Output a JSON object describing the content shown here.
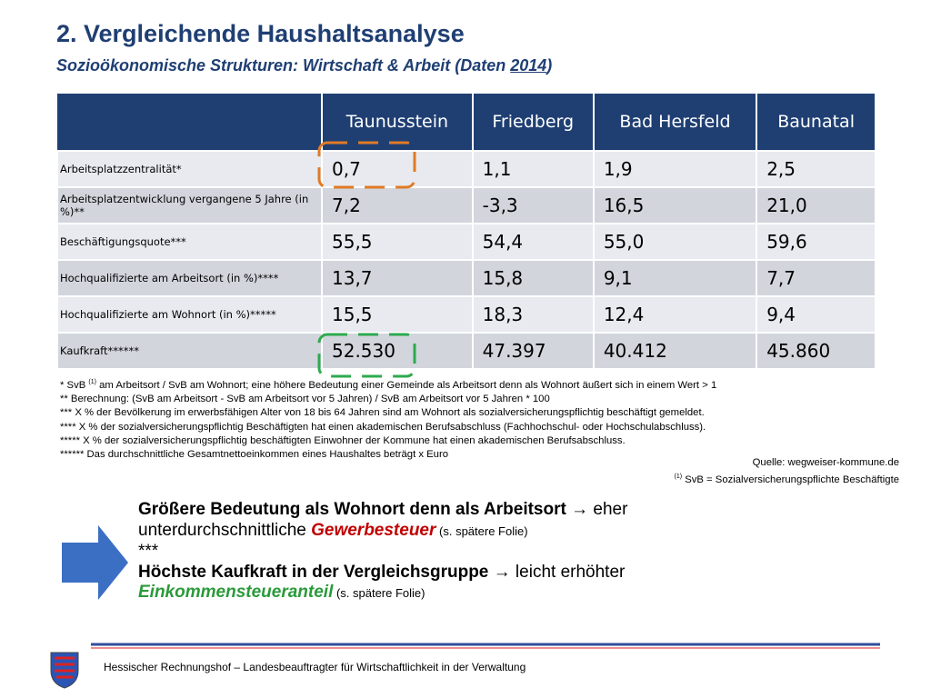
{
  "header": {
    "title": "2. Vergleichende Haushaltsanalyse",
    "subtitle": {
      "prefix": "Sozioökonomische Strukturen: Wirtschaft & Arbeit (Daten ",
      "year": "2014",
      "suffix": ")"
    }
  },
  "table": {
    "columns": [
      "Taunusstein",
      "Friedberg",
      "Bad Hersfeld",
      "Baunatal"
    ],
    "rows": [
      [
        "Arbeitsplatzzentralität*",
        "0,7",
        "1,1",
        "1,9",
        "2,5"
      ],
      [
        "Arbeitsplatzentwicklung vergangene 5 Jahre (in %)**",
        "7,2",
        "-3,3",
        "16,5",
        "21,0"
      ],
      [
        "Beschäftigungsquote***",
        "55,5",
        "54,4",
        "55,0",
        "59,6"
      ],
      [
        "Hochqualifizierte am Arbeitsort (in %)****",
        "13,7",
        "15,8",
        "9,1",
        "7,7"
      ],
      [
        "Hochqualifizierte am Wohnort (in %)*****",
        "15,5",
        "18,3",
        "12,4",
        "9,4"
      ],
      [
        "Kaufkraft******",
        "52.530",
        "47.397",
        "40.412",
        "45.860"
      ]
    ]
  },
  "footnotes": {
    "first": {
      "prefix": "* SvB ",
      "sup": "(1)",
      "text": " am Arbeitsort / SvB am Wohnort; eine höhere Bedeutung einer Gemeinde als Arbeitsort denn als Wohnort äußert sich in einem Wert > 1"
    },
    "lines": [
      "** Berechnung: (SvB am Arbeitsort - SvB am Arbeitsort vor 5 Jahren) / SvB am Arbeitsort vor 5 Jahren * 100",
      "*** X % der Bevölkerung im erwerbsfähigen Alter von 18 bis 64 Jahren sind am Wohnort als sozialversicherungspflichtig beschäftigt gemeldet.",
      "**** X % der sozialversicherungspflichtig Beschäftigten hat einen akademischen Berufsabschluss (Fachhochschul- oder Hochschulabschluss).",
      "***** X % der sozialversicherungspflichtig beschäftigten Einwohner der Kommune hat einen akademischen Berufsabschluss.",
      "****** Das durchschnittliche Gesamtnettoeinkommen eines Haushaltes beträgt x Euro"
    ]
  },
  "source": {
    "line": "Quelle: wegweiser-kommune.de",
    "sup": "(1)",
    "definition": " SvB = Sozialversicherungspflichte Beschäftigte"
  },
  "conclusion": {
    "first": {
      "bold": "Größere Bedeutung als Wohnort denn als Arbeitsort",
      "text": " → eher unterdurchschnittliche ",
      "highlight": "Gewerbesteuer",
      "note": " (s. spätere Folie)"
    },
    "separator": "***",
    "second": {
      "bold": "Höchste Kaufkraft in der Vergleichsgruppe",
      "text": " → leicht erhöhter ",
      "highlight": "Einkommensteueranteil",
      "note": " (s. spätere Folie)"
    }
  },
  "footer": {
    "text": "Hessischer Rechnungshof – Landesbeauftragter für Wirtschaftlichkeit in der Verwaltung"
  }
}
